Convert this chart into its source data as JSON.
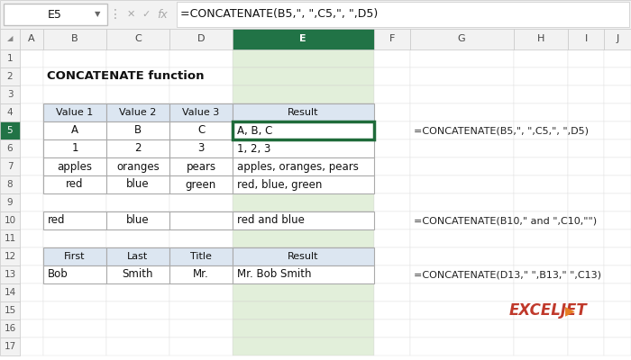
{
  "formula_bar_cell": "E5",
  "formula_bar_formula": "=CONCATENATE(B5,\", \",C5,\", \",D5)",
  "col_letters": [
    "A",
    "B",
    "C",
    "D",
    "E",
    "F",
    "G",
    "H",
    "I",
    "J"
  ],
  "row_numbers": [
    "1",
    "2",
    "3",
    "4",
    "5",
    "6",
    "7",
    "8",
    "9",
    "10",
    "11",
    "12",
    "13",
    "14",
    "15",
    "16",
    "17"
  ],
  "bold_title": "CONCATENATE function",
  "table1_headers": [
    "Value 1",
    "Value 2",
    "Value 3",
    "Result"
  ],
  "table1_cols": [
    "B",
    "C",
    "D",
    "E"
  ],
  "table1_rows": [
    [
      "A",
      "B",
      "C",
      "A, B, C"
    ],
    [
      "1",
      "2",
      "3",
      "1, 2, 3"
    ],
    [
      "apples",
      "oranges",
      "pears",
      "apples, oranges, pears"
    ],
    [
      "red",
      "blue",
      "green",
      "red, blue, green"
    ]
  ],
  "table1_data_rows": [
    "5",
    "6",
    "7",
    "8"
  ],
  "table1_header_row": "4",
  "table1_header_bg": "#dce6f1",
  "table2_row": "10",
  "table2_cols": [
    "B",
    "C",
    "D",
    "E"
  ],
  "table2_data": [
    "red",
    "blue",
    "",
    "red and blue"
  ],
  "table3_header_row": "12",
  "table3_data_row": "13",
  "table3_headers": [
    "First",
    "Last",
    "Title",
    "Result"
  ],
  "table3_cols": [
    "B",
    "C",
    "D",
    "E"
  ],
  "table3_data": [
    "Bob",
    "Smith",
    "Mr.",
    "Mr. Bob Smith"
  ],
  "table3_header_bg": "#dce6f1",
  "highlight_border": "#1f6b3a",
  "header_selected_bg": "#217346",
  "selected_col_bg": "#e2efda",
  "formula_annotations": [
    {
      "row": "5",
      "text": "=CONCATENATE(B5,\", \",C5,\", \",D5)"
    },
    {
      "row": "10",
      "text": "=CONCATENATE(B10,\" and \",C10,\"\")"
    },
    {
      "row": "13",
      "text": "=CONCATENATE(D13,\" \",B13,\" \",C13)"
    }
  ],
  "exceljet_text": "EXCELJET",
  "exceljet_color": "#c0392b",
  "exceljet_arrow_color": "#e67e22"
}
